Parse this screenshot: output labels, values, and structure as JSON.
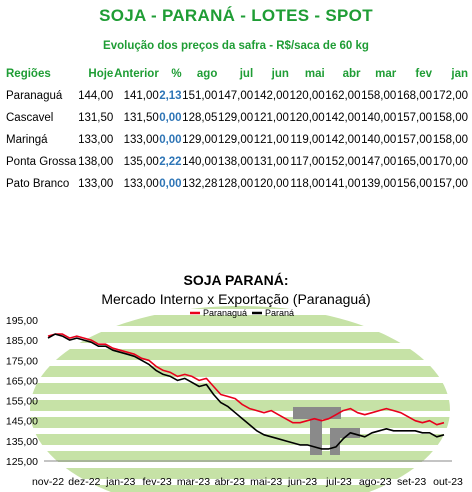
{
  "header": {
    "title": "SOJA - PARANÁ - LOTES - SPOT",
    "subtitle": "Evolução dos preços da safra - R$/saca de 60 kg"
  },
  "table": {
    "columns": [
      "Regiões",
      "Hoje",
      "Anterior",
      "%",
      "ago",
      "jul",
      "jun",
      "mai",
      "abr",
      "mar",
      "fev",
      "jan"
    ],
    "rows": [
      [
        "Paranaguá",
        "144,00",
        "141,00",
        "2,13",
        "151,00",
        "147,00",
        "142,00",
        "120,00",
        "162,00",
        "158,00",
        "168,00",
        "172,00"
      ],
      [
        "Cascavel",
        "131,50",
        "131,50",
        "0,00",
        "128,05",
        "129,00",
        "121,00",
        "120,00",
        "142,00",
        "140,00",
        "157,00",
        "158,00"
      ],
      [
        "Maringá",
        "133,00",
        "133,00",
        "0,00",
        "129,00",
        "129,00",
        "121,00",
        "119,00",
        "142,00",
        "140,00",
        "157,00",
        "158,00"
      ],
      [
        "Ponta Grossa",
        "138,00",
        "135,00",
        "2,22",
        "140,00",
        "138,00",
        "131,00",
        "117,00",
        "152,00",
        "147,00",
        "165,00",
        "170,00"
      ],
      [
        "Pato Branco",
        "133,00",
        "133,00",
        "0,00",
        "132,28",
        "128,00",
        "120,00",
        "118,00",
        "141,00",
        "139,00",
        "156,00",
        "157,00"
      ]
    ]
  },
  "chart_data": {
    "type": "line",
    "title": "SOJA PARANÁ:",
    "subtitle": "Mercado Interno x Exportação (Paranaguá)",
    "legend_position": "top-center",
    "ylim": [
      125,
      195
    ],
    "yticks": [
      "195,00",
      "185,00",
      "175,00",
      "165,00",
      "155,00",
      "145,00",
      "135,00",
      "125,00"
    ],
    "xticks": [
      "nov-22",
      "dez-22",
      "jan-23",
      "fev-23",
      "mar-23",
      "abr-23",
      "mai-23",
      "jun-23",
      "jul-23",
      "ago-23",
      "set-23",
      "out-23"
    ],
    "grid": false,
    "series": [
      {
        "name": "Paranaguá",
        "color": "#e8001c",
        "values": [
          187,
          188,
          188,
          186,
          187,
          186,
          185,
          183,
          183,
          181,
          180,
          179,
          178,
          176,
          175,
          172,
          170,
          169,
          167,
          168,
          167,
          165,
          166,
          162,
          158,
          157,
          156,
          153,
          151,
          150,
          149,
          150,
          148,
          146,
          144,
          144,
          145,
          146,
          145,
          146,
          148,
          150,
          151,
          149,
          148,
          149,
          150,
          151,
          150,
          149,
          147,
          145,
          144,
          145,
          143,
          144
        ]
      },
      {
        "name": "Paraná",
        "color": "#000000",
        "values": [
          186,
          188,
          187,
          185,
          186,
          185,
          184,
          182,
          182,
          180,
          179,
          178,
          177,
          175,
          173,
          170,
          168,
          167,
          165,
          166,
          164,
          162,
          163,
          158,
          154,
          152,
          149,
          146,
          143,
          140,
          138,
          137,
          136,
          135,
          134,
          133,
          133,
          132,
          131,
          131,
          132,
          136,
          139,
          138,
          137,
          139,
          140,
          141,
          140,
          140,
          140,
          140,
          139,
          139,
          137,
          138
        ]
      }
    ]
  }
}
